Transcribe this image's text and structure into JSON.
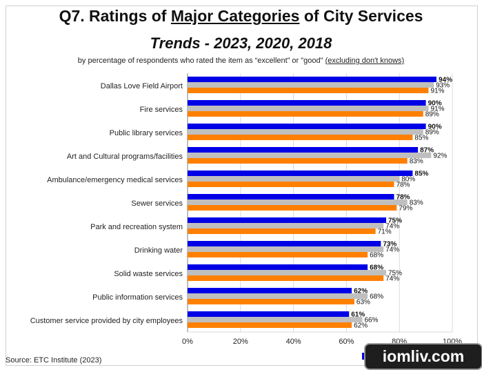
{
  "header": {
    "title_prefix": "Q7. Ratings of ",
    "title_underlined": "Major Categories",
    "title_suffix": " of City Services",
    "subtitle": "Trends - 2023, 2020, 2018",
    "note_prefix": "by percentage of respondents who rated the item as “excellent” or \"good\" ",
    "note_underlined": "(excluding don't knows)"
  },
  "source": "Source:   ETC Institute (2023)",
  "watermark": "iomliv.com",
  "colors": {
    "2023": "#0000e6",
    "2020": "#bfbfbf",
    "2018": "#ff8000"
  },
  "chart_data": {
    "type": "bar",
    "orientation": "horizontal",
    "categories": [
      "Dallas Love Field Airport",
      "Fire services",
      "Public library services",
      "Art and Cultural programs/facilities",
      "Ambulance/emergency medical services",
      "Sewer services",
      "Park and recreation system",
      "Drinking water",
      "Solid waste services",
      "Public information services",
      "Customer service provided by city employees"
    ],
    "series": [
      {
        "name": "2023",
        "values": [
          94,
          90,
          90,
          87,
          85,
          78,
          75,
          73,
          68,
          62,
          61
        ]
      },
      {
        "name": "2020",
        "values": [
          93,
          91,
          89,
          92,
          80,
          83,
          74,
          74,
          75,
          68,
          66
        ]
      },
      {
        "name": "2018",
        "values": [
          91,
          89,
          85,
          83,
          78,
          79,
          71,
          68,
          74,
          63,
          62
        ]
      }
    ],
    "xlim": [
      0,
      100
    ],
    "xticks": [
      "0%",
      "20%",
      "40%",
      "60%",
      "80%",
      "100%"
    ],
    "grid": true,
    "legend_position": "bottom-right",
    "data_label_suffix": "%"
  }
}
